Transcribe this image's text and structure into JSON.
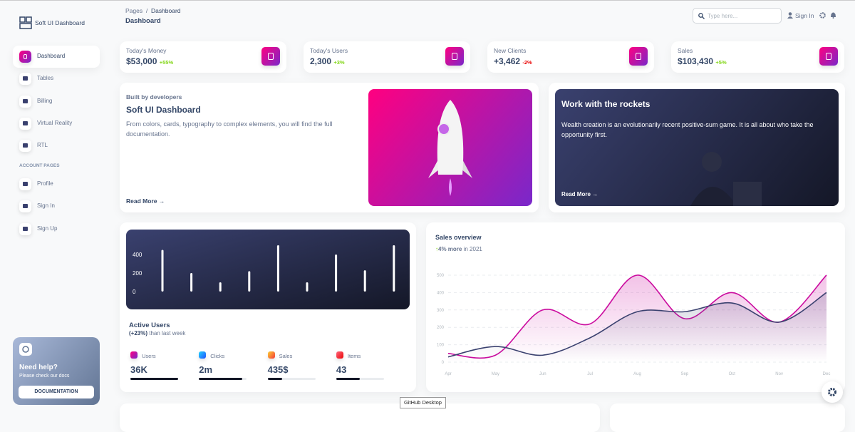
{
  "sidebar": {
    "brand": "Soft UI Dashboard",
    "nav": [
      "Dashboard",
      "Tables",
      "Billing",
      "Virtual Reality",
      "RTL"
    ],
    "section": "ACCOUNT PAGES",
    "account_nav": [
      "Profile",
      "Sign In",
      "Sign Up"
    ],
    "help": {
      "title": "Need help?",
      "text": "Please check our docs",
      "button": "DOCUMENTATION"
    }
  },
  "header": {
    "breadcrumb": [
      "Pages",
      "/",
      "Dashboard"
    ],
    "title": "Dashboard",
    "search_placeholder": "Type here...",
    "sign_in": "Sign In"
  },
  "stats": [
    {
      "label": "Today's Money",
      "value": "$53,000",
      "change": "+55%"
    },
    {
      "label": "Today's Users",
      "value": "2,300",
      "change": "+3%"
    },
    {
      "label": "New Clients",
      "value": "+3,462",
      "change": "-2%"
    },
    {
      "label": "Sales",
      "value": "$103,430",
      "change": "+5%"
    }
  ],
  "builder_card": {
    "kicker": "Built by developers",
    "title": "Soft UI Dashboard",
    "text": "From colors, cards, typography to complex elements, you will find the full documentation.",
    "link": "Read More"
  },
  "rockets_card": {
    "title": "Work with the rockets",
    "text": "Wealth creation is an evolutionarily recent positive-sum game. It is all about who take the opportunity first.",
    "link": "Read More"
  },
  "active_users": {
    "chart_data": {
      "type": "bar",
      "values": [
        450,
        200,
        100,
        220,
        500,
        100,
        400,
        230,
        500
      ],
      "ylim": [
        0,
        500
      ],
      "yticks": [
        0,
        200,
        400
      ],
      "color": "#ffffff"
    },
    "title": "Active Users",
    "change": "(+23%)",
    "change_text": "than last week",
    "items": [
      {
        "label": "Users",
        "value": "36K",
        "progress": 100
      },
      {
        "label": "Clicks",
        "value": "2m",
        "progress": 90
      },
      {
        "label": "Sales",
        "value": "435$",
        "progress": 30
      },
      {
        "label": "Items",
        "value": "43",
        "progress": 50
      }
    ]
  },
  "sales_overview": {
    "title": "Sales overview",
    "change": "4% more",
    "change_text": "in 2021",
    "chart_data": {
      "type": "line",
      "categories": [
        "Apr",
        "May",
        "Jun",
        "Jul",
        "Aug",
        "Sep",
        "Oct",
        "Nov",
        "Dec"
      ],
      "series": [
        {
          "color": "#cb0c9f",
          "values": [
            50,
            40,
            300,
            220,
            500,
            250,
            400,
            230,
            500
          ]
        },
        {
          "color": "#3a416f",
          "values": [
            30,
            90,
            40,
            140,
            290,
            290,
            340,
            230,
            400
          ]
        }
      ],
      "ylim": [
        0,
        500
      ],
      "yticks": [
        0,
        100,
        200,
        300,
        400,
        500
      ],
      "grid": true
    }
  },
  "tooltip": "GitHub Desktop"
}
